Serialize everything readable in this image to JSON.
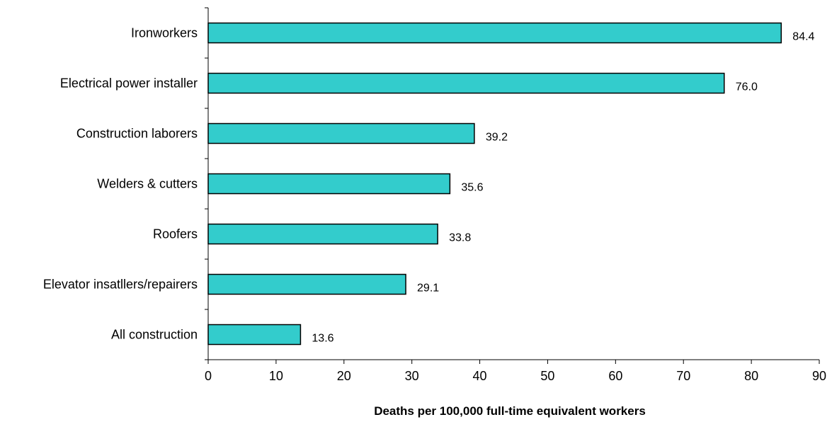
{
  "chart_data": {
    "type": "bar",
    "orientation": "horizontal",
    "categories": [
      "Ironworkers",
      "Electrical power installer",
      "Construction laborers",
      "Welders & cutters",
      "Roofers",
      "Elevator insatllers/repairers",
      "All construction"
    ],
    "values": [
      84.4,
      76.0,
      39.2,
      35.6,
      33.8,
      29.1,
      13.6
    ],
    "value_labels": [
      "84.4",
      "76.0",
      "39.2",
      "35.6",
      "33.8",
      "29.1",
      "13.6"
    ],
    "xlabel": "Deaths per 100,000 full-time equivalent workers",
    "ylabel": "",
    "title": "",
    "xlim": [
      0,
      90
    ],
    "xticks": [
      0,
      10,
      20,
      30,
      40,
      50,
      60,
      70,
      80,
      90
    ],
    "grid": false,
    "legend": "none",
    "bar_color": "#33CCCC",
    "bar_edge_color": "#000000"
  }
}
